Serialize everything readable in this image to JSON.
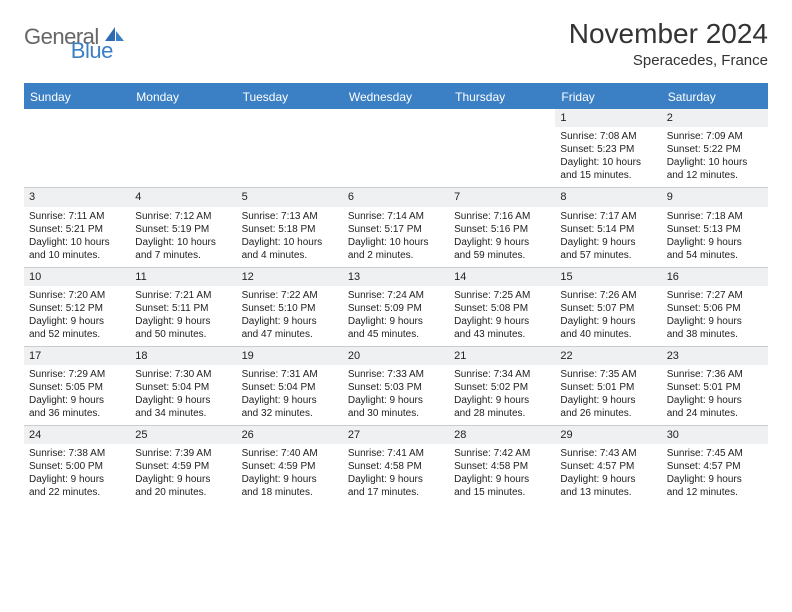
{
  "logo": {
    "part1": "General",
    "part2": "Blue"
  },
  "title": "November 2024",
  "subtitle": "Speracedes, France",
  "colors": {
    "header_bg": "#3b7fc4",
    "header_text": "#ffffff",
    "daynum_bg": "#eef0f2",
    "border": "#cccccc",
    "text": "#222222",
    "logo_gray": "#666666"
  },
  "day_names": [
    "Sunday",
    "Monday",
    "Tuesday",
    "Wednesday",
    "Thursday",
    "Friday",
    "Saturday"
  ],
  "weeks": [
    [
      null,
      null,
      null,
      null,
      null,
      {
        "n": "1",
        "sunrise": "7:08 AM",
        "sunset": "5:23 PM",
        "dl1": "Daylight: 10 hours",
        "dl2": "and 15 minutes."
      },
      {
        "n": "2",
        "sunrise": "7:09 AM",
        "sunset": "5:22 PM",
        "dl1": "Daylight: 10 hours",
        "dl2": "and 12 minutes."
      }
    ],
    [
      {
        "n": "3",
        "sunrise": "7:11 AM",
        "sunset": "5:21 PM",
        "dl1": "Daylight: 10 hours",
        "dl2": "and 10 minutes."
      },
      {
        "n": "4",
        "sunrise": "7:12 AM",
        "sunset": "5:19 PM",
        "dl1": "Daylight: 10 hours",
        "dl2": "and 7 minutes."
      },
      {
        "n": "5",
        "sunrise": "7:13 AM",
        "sunset": "5:18 PM",
        "dl1": "Daylight: 10 hours",
        "dl2": "and 4 minutes."
      },
      {
        "n": "6",
        "sunrise": "7:14 AM",
        "sunset": "5:17 PM",
        "dl1": "Daylight: 10 hours",
        "dl2": "and 2 minutes."
      },
      {
        "n": "7",
        "sunrise": "7:16 AM",
        "sunset": "5:16 PM",
        "dl1": "Daylight: 9 hours",
        "dl2": "and 59 minutes."
      },
      {
        "n": "8",
        "sunrise": "7:17 AM",
        "sunset": "5:14 PM",
        "dl1": "Daylight: 9 hours",
        "dl2": "and 57 minutes."
      },
      {
        "n": "9",
        "sunrise": "7:18 AM",
        "sunset": "5:13 PM",
        "dl1": "Daylight: 9 hours",
        "dl2": "and 54 minutes."
      }
    ],
    [
      {
        "n": "10",
        "sunrise": "7:20 AM",
        "sunset": "5:12 PM",
        "dl1": "Daylight: 9 hours",
        "dl2": "and 52 minutes."
      },
      {
        "n": "11",
        "sunrise": "7:21 AM",
        "sunset": "5:11 PM",
        "dl1": "Daylight: 9 hours",
        "dl2": "and 50 minutes."
      },
      {
        "n": "12",
        "sunrise": "7:22 AM",
        "sunset": "5:10 PM",
        "dl1": "Daylight: 9 hours",
        "dl2": "and 47 minutes."
      },
      {
        "n": "13",
        "sunrise": "7:24 AM",
        "sunset": "5:09 PM",
        "dl1": "Daylight: 9 hours",
        "dl2": "and 45 minutes."
      },
      {
        "n": "14",
        "sunrise": "7:25 AM",
        "sunset": "5:08 PM",
        "dl1": "Daylight: 9 hours",
        "dl2": "and 43 minutes."
      },
      {
        "n": "15",
        "sunrise": "7:26 AM",
        "sunset": "5:07 PM",
        "dl1": "Daylight: 9 hours",
        "dl2": "and 40 minutes."
      },
      {
        "n": "16",
        "sunrise": "7:27 AM",
        "sunset": "5:06 PM",
        "dl1": "Daylight: 9 hours",
        "dl2": "and 38 minutes."
      }
    ],
    [
      {
        "n": "17",
        "sunrise": "7:29 AM",
        "sunset": "5:05 PM",
        "dl1": "Daylight: 9 hours",
        "dl2": "and 36 minutes."
      },
      {
        "n": "18",
        "sunrise": "7:30 AM",
        "sunset": "5:04 PM",
        "dl1": "Daylight: 9 hours",
        "dl2": "and 34 minutes."
      },
      {
        "n": "19",
        "sunrise": "7:31 AM",
        "sunset": "5:04 PM",
        "dl1": "Daylight: 9 hours",
        "dl2": "and 32 minutes."
      },
      {
        "n": "20",
        "sunrise": "7:33 AM",
        "sunset": "5:03 PM",
        "dl1": "Daylight: 9 hours",
        "dl2": "and 30 minutes."
      },
      {
        "n": "21",
        "sunrise": "7:34 AM",
        "sunset": "5:02 PM",
        "dl1": "Daylight: 9 hours",
        "dl2": "and 28 minutes."
      },
      {
        "n": "22",
        "sunrise": "7:35 AM",
        "sunset": "5:01 PM",
        "dl1": "Daylight: 9 hours",
        "dl2": "and 26 minutes."
      },
      {
        "n": "23",
        "sunrise": "7:36 AM",
        "sunset": "5:01 PM",
        "dl1": "Daylight: 9 hours",
        "dl2": "and 24 minutes."
      }
    ],
    [
      {
        "n": "24",
        "sunrise": "7:38 AM",
        "sunset": "5:00 PM",
        "dl1": "Daylight: 9 hours",
        "dl2": "and 22 minutes."
      },
      {
        "n": "25",
        "sunrise": "7:39 AM",
        "sunset": "4:59 PM",
        "dl1": "Daylight: 9 hours",
        "dl2": "and 20 minutes."
      },
      {
        "n": "26",
        "sunrise": "7:40 AM",
        "sunset": "4:59 PM",
        "dl1": "Daylight: 9 hours",
        "dl2": "and 18 minutes."
      },
      {
        "n": "27",
        "sunrise": "7:41 AM",
        "sunset": "4:58 PM",
        "dl1": "Daylight: 9 hours",
        "dl2": "and 17 minutes."
      },
      {
        "n": "28",
        "sunrise": "7:42 AM",
        "sunset": "4:58 PM",
        "dl1": "Daylight: 9 hours",
        "dl2": "and 15 minutes."
      },
      {
        "n": "29",
        "sunrise": "7:43 AM",
        "sunset": "4:57 PM",
        "dl1": "Daylight: 9 hours",
        "dl2": "and 13 minutes."
      },
      {
        "n": "30",
        "sunrise": "7:45 AM",
        "sunset": "4:57 PM",
        "dl1": "Daylight: 9 hours",
        "dl2": "and 12 minutes."
      }
    ]
  ],
  "labels": {
    "sunrise": "Sunrise: ",
    "sunset": "Sunset: "
  }
}
